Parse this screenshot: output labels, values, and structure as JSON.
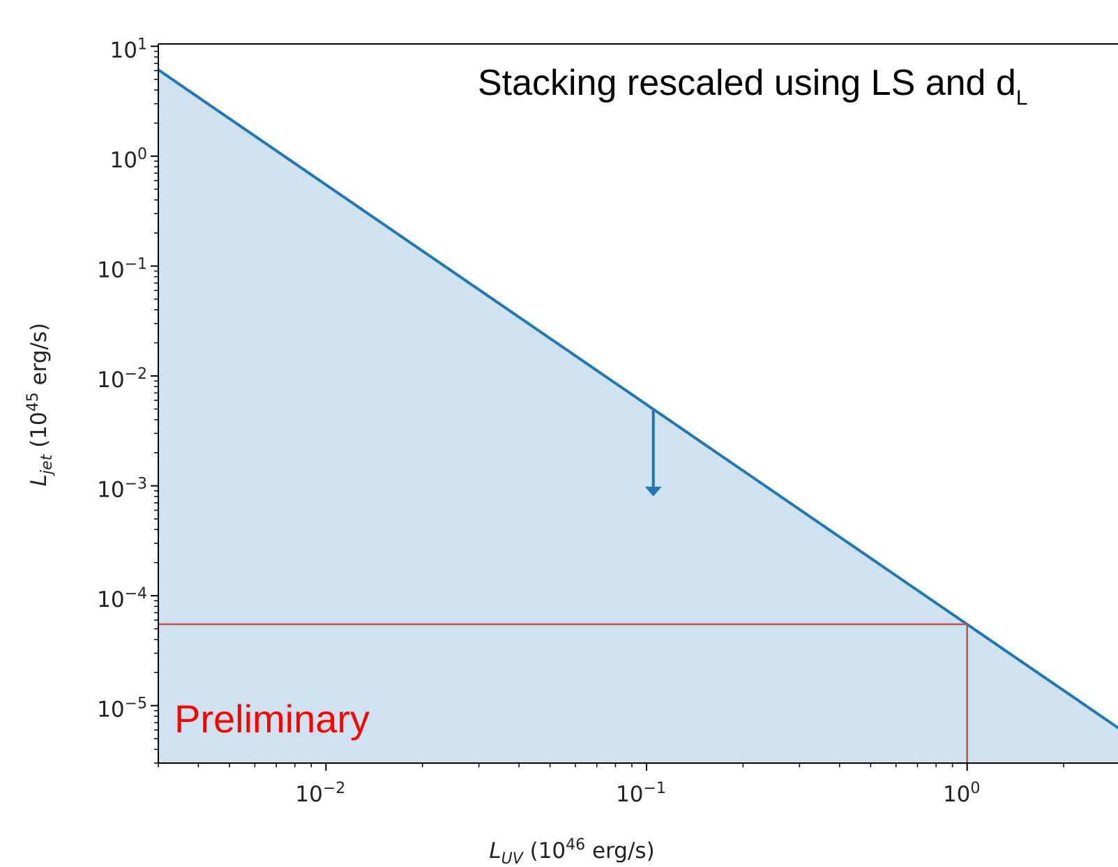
{
  "chart_data": {
    "type": "line",
    "log_x": true,
    "log_y": true,
    "xlim": [
      0.003,
      3
    ],
    "ylim": [
      3e-06,
      10.5
    ],
    "xticks": [
      {
        "value": 0.01,
        "label": "10",
        "exponent": "−2"
      },
      {
        "value": 0.1,
        "label": "10",
        "exponent": "−1"
      },
      {
        "value": 1,
        "label": "10",
        "exponent": "0"
      }
    ],
    "yticks": [
      {
        "value": 1e-05,
        "label": "10",
        "exponent": "−5"
      },
      {
        "value": 0.0001,
        "label": "10",
        "exponent": "−4"
      },
      {
        "value": 0.001,
        "label": "10",
        "exponent": "−3"
      },
      {
        "value": 0.01,
        "label": "10",
        "exponent": "−2"
      },
      {
        "value": 0.1,
        "label": "10",
        "exponent": "−1"
      },
      {
        "value": 1,
        "label": "10",
        "exponent": "0"
      },
      {
        "value": 10,
        "label": "10",
        "exponent": "1"
      }
    ],
    "xlabel": {
      "main": "L",
      "sub": "UV",
      "pre": " (10",
      "sup": "46",
      "post": " erg/s)"
    },
    "ylabel": {
      "main": "L",
      "sub": "jet",
      "pre": " (10",
      "sup": "45",
      "post": " erg/s)"
    },
    "series": [
      {
        "x": [
          0.003,
          3
        ],
        "values": [
          6.1,
          6.1e-06
        ],
        "color": "#1f77b4",
        "fill": "#d0e2ef"
      }
    ],
    "arrow": {
      "x": [
        0.105,
        0.105
      ],
      "y": [
        0.005,
        0.0008
      ],
      "color": "#1f77b4"
    },
    "reference": {
      "x": 1,
      "y": 5.5e-05,
      "color": "#c0504d"
    },
    "annotation": {
      "text": "Stacking rescaled using LS and d",
      "sub": "L"
    },
    "watermark": {
      "text": "Preliminary",
      "color": "#ff0000"
    }
  }
}
